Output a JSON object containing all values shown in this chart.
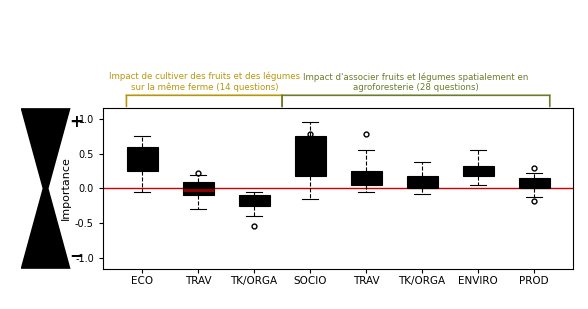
{
  "title_left": "Impact de cultiver des fruits et des légumes\nsur la même ferme (14 questions)",
  "title_right": "Impact d'associer fruits et légumes spatialement en\nagroforesterie (28 questions)",
  "ylabel": "Importance",
  "xlabels": [
    "ECO",
    "TRAV",
    "TK/ORGA",
    "SOCIO",
    "TRAV",
    "TK/ORGA",
    "ENVIRO",
    "PROD"
  ],
  "group1_color": "#b8960c",
  "group2_color": "#6b7c2a",
  "ref_line_color": "#cc0000",
  "background_color": "#ffffff",
  "boxes": [
    {
      "label": "ECO",
      "q1": 0.25,
      "median": 0.35,
      "q3": 0.6,
      "whislo": -0.05,
      "whishi": 0.75,
      "fliers": []
    },
    {
      "label": "TRAV",
      "q1": -0.1,
      "median": -0.02,
      "q3": 0.1,
      "whislo": -0.3,
      "whishi": 0.2,
      "fliers": [
        0.22
      ]
    },
    {
      "label": "TK/ORGA",
      "q1": -0.25,
      "median": -0.2,
      "q3": -0.1,
      "whislo": -0.4,
      "whishi": -0.05,
      "fliers": [
        -0.53
      ]
    },
    {
      "label": "SOCIO",
      "q1": 0.18,
      "median": 0.42,
      "q3": 0.75,
      "whislo": -0.15,
      "whishi": 0.95,
      "fliers": [
        0.78
      ]
    },
    {
      "label": "TRAV",
      "q1": 0.05,
      "median": 0.12,
      "q3": 0.25,
      "whislo": -0.05,
      "whishi": 0.55,
      "fliers": [
        0.78
      ]
    },
    {
      "label": "TK/ORGA",
      "q1": 0.0,
      "median": 0.07,
      "q3": 0.18,
      "whislo": -0.08,
      "whishi": 0.38,
      "fliers": []
    },
    {
      "label": "ENVIRO",
      "q1": 0.18,
      "median": 0.25,
      "q3": 0.32,
      "whislo": 0.05,
      "whishi": 0.55,
      "fliers": []
    },
    {
      "label": "PROD",
      "q1": 0.0,
      "median": 0.07,
      "q3": 0.15,
      "whislo": -0.12,
      "whishi": 0.22,
      "fliers": [
        0.3,
        -0.18
      ]
    }
  ],
  "ylim": [
    -1.15,
    1.15
  ],
  "yticks": [
    -1.0,
    -0.5,
    0.0,
    0.5,
    1.0
  ],
  "figsize": [
    5.88,
    3.09
  ],
  "dpi": 100
}
